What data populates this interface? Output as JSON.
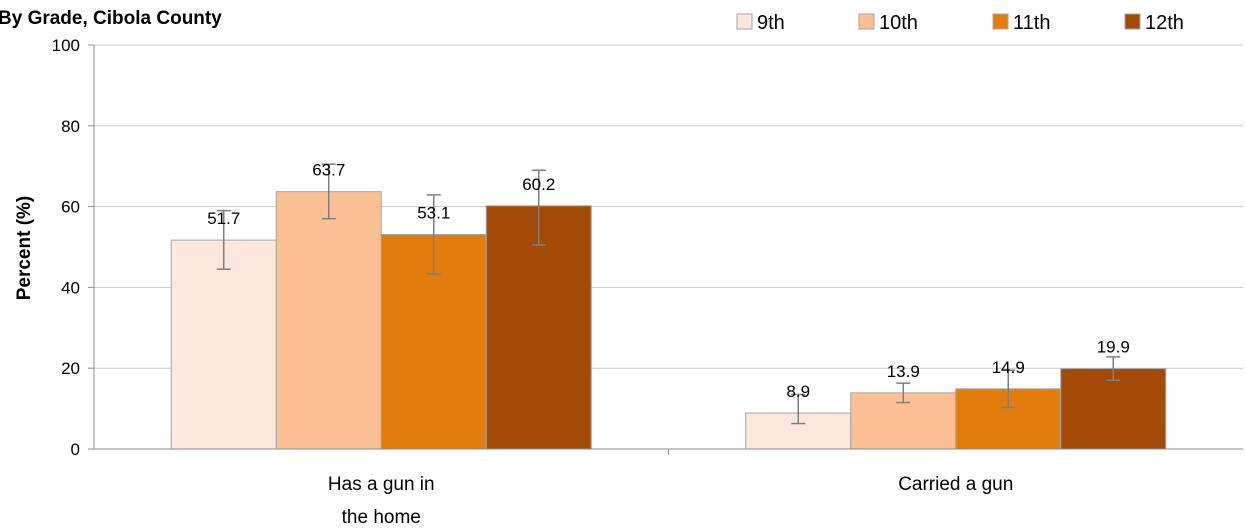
{
  "chart_data": {
    "type": "bar",
    "title": "By Grade, Cibola County",
    "ylabel": "Percent (%)",
    "xlabel": "",
    "ylim": [
      0,
      100
    ],
    "yticks": [
      0,
      20,
      40,
      60,
      80,
      100
    ],
    "grid": true,
    "legend_position": "top-right",
    "categories": [
      [
        "Has a gun in",
        "the home"
      ],
      [
        "Carried a gun"
      ]
    ],
    "series": [
      {
        "name": "9th",
        "color": "#fde6dc",
        "values": [
          51.7,
          8.9
        ],
        "error_low": [
          44.5,
          6.3
        ],
        "error_high": [
          59.0,
          13.5
        ]
      },
      {
        "name": "10th",
        "color": "#fbbf94",
        "values": [
          63.7,
          13.9
        ],
        "error_low": [
          57.0,
          11.5
        ],
        "error_high": [
          70.5,
          16.3
        ]
      },
      {
        "name": "11th",
        "color": "#e27c0c",
        "values": [
          53.1,
          14.9
        ],
        "error_low": [
          43.3,
          10.3
        ],
        "error_high": [
          62.9,
          19.5
        ]
      },
      {
        "name": "12th",
        "color": "#a34a06",
        "values": [
          60.2,
          19.9
        ],
        "error_low": [
          50.5,
          17.0
        ],
        "error_high": [
          69.0,
          22.8
        ]
      }
    ]
  }
}
